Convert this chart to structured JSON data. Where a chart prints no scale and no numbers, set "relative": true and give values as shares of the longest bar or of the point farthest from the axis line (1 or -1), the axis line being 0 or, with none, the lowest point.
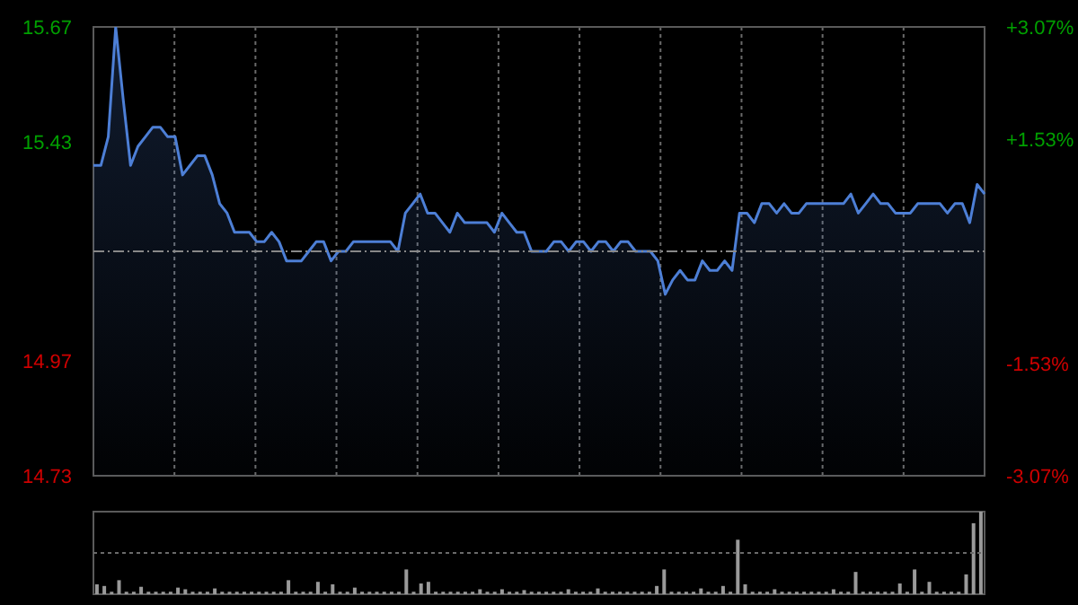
{
  "chart_data": [
    {
      "type": "area",
      "categories": [
        null,
        null,
        null,
        null,
        null,
        null,
        null,
        null,
        null,
        null,
        null,
        null,
        null,
        null,
        null,
        null,
        null,
        null,
        null,
        null,
        null,
        null,
        null,
        null,
        null,
        null,
        null,
        null,
        null,
        null,
        null,
        null,
        null,
        null,
        null,
        null,
        null,
        null,
        null,
        null,
        null,
        null,
        null,
        null,
        null,
        null,
        null,
        null,
        null,
        null,
        null,
        null,
        null,
        null,
        null,
        null,
        null,
        null,
        null,
        null,
        null,
        null,
        null,
        null,
        null,
        null,
        null,
        null,
        null,
        null,
        null,
        null,
        null,
        null,
        null,
        null,
        null,
        null,
        null,
        null,
        null,
        null,
        null,
        null,
        null,
        null,
        null,
        null,
        null,
        null,
        null,
        null,
        null,
        null,
        null,
        null,
        null,
        null,
        null,
        null,
        null,
        null,
        null,
        null,
        null,
        null,
        null,
        null,
        null,
        null,
        null,
        null,
        null,
        null,
        null,
        null,
        null,
        null,
        null,
        null,
        null
      ],
      "series": [
        {
          "color": "#4d7fd6",
          "values": [
            15.38,
            15.38,
            15.44,
            15.67,
            15.52,
            15.38,
            15.42,
            15.44,
            15.46,
            15.46,
            15.44,
            15.44,
            15.36,
            15.38,
            15.4,
            15.4,
            15.36,
            15.3,
            15.28,
            15.24,
            15.24,
            15.24,
            15.22,
            15.22,
            15.24,
            15.22,
            15.18,
            15.18,
            15.18,
            15.2,
            15.22,
            15.22,
            15.18,
            15.2,
            15.2,
            15.22,
            15.22,
            15.22,
            15.22,
            15.22,
            15.22,
            15.2,
            15.28,
            15.3,
            15.32,
            15.28,
            15.28,
            15.26,
            15.24,
            15.28,
            15.26,
            15.26,
            15.26,
            15.26,
            15.24,
            15.28,
            15.26,
            15.24,
            15.24,
            15.2,
            15.2,
            15.2,
            15.22,
            15.22,
            15.2,
            15.22,
            15.22,
            15.2,
            15.22,
            15.22,
            15.2,
            15.22,
            15.22,
            15.2,
            15.2,
            15.2,
            15.18,
            15.11,
            15.14,
            15.16,
            15.14,
            15.14,
            15.18,
            15.16,
            15.16,
            15.18,
            15.16,
            15.28,
            15.28,
            15.26,
            15.3,
            15.3,
            15.28,
            15.3,
            15.28,
            15.28,
            15.3,
            15.3,
            15.3,
            15.3,
            15.3,
            15.3,
            15.32,
            15.28,
            15.3,
            15.32,
            15.3,
            15.3,
            15.28,
            15.28,
            15.28,
            15.3,
            15.3,
            15.3,
            15.3,
            15.28,
            15.3,
            15.3,
            15.26,
            15.34,
            15.32
          ]
        }
      ],
      "ylim": [
        14.73,
        15.67
      ],
      "yticks": [
        14.73,
        14.97,
        15.43,
        15.67
      ],
      "y2lim": [
        -3.07,
        3.07
      ],
      "y2ticks": [
        {
          "value": -3.07,
          "label": "-3.07%"
        },
        {
          "value": -1.53,
          "label": "-1.53%"
        },
        {
          "value": 1.53,
          "label": "+1.53%"
        },
        {
          "value": 3.07,
          "label": "+3.07%"
        }
      ],
      "ref_lines": [
        {
          "axis": "y",
          "value": 15.2,
          "color": "#888888",
          "line_style": "dashed"
        }
      ],
      "grid": true,
      "legend": false,
      "marker": "none",
      "line_style": "solid"
    },
    {
      "type": "bar",
      "relative": true,
      "categories": [
        null,
        null,
        null,
        null,
        null,
        null,
        null,
        null,
        null,
        null,
        null,
        null,
        null,
        null,
        null,
        null,
        null,
        null,
        null,
        null,
        null,
        null,
        null,
        null,
        null,
        null,
        null,
        null,
        null,
        null,
        null,
        null,
        null,
        null,
        null,
        null,
        null,
        null,
        null,
        null,
        null,
        null,
        null,
        null,
        null,
        null,
        null,
        null,
        null,
        null,
        null,
        null,
        null,
        null,
        null,
        null,
        null,
        null,
        null,
        null,
        null,
        null,
        null,
        null,
        null,
        null,
        null,
        null,
        null,
        null,
        null,
        null,
        null,
        null,
        null,
        null,
        null,
        null,
        null,
        null,
        null,
        null,
        null,
        null,
        null,
        null,
        null,
        null,
        null,
        null,
        null,
        null,
        null,
        null,
        null,
        null,
        null,
        null,
        null,
        null,
        null,
        null,
        null,
        null,
        null,
        null,
        null,
        null,
        null,
        null,
        null,
        null,
        null,
        null,
        null,
        null,
        null,
        null,
        null,
        null,
        null
      ],
      "series": [
        {
          "color": "#9a9a9a",
          "values": [
            0.12,
            0.1,
            0.03,
            0.17,
            0.03,
            0.03,
            0.09,
            0.03,
            0.03,
            0.03,
            0.03,
            0.08,
            0.06,
            0.03,
            0.03,
            0.03,
            0.07,
            0.03,
            0.03,
            0.03,
            0.03,
            0.03,
            0.03,
            0.03,
            0.03,
            0.03,
            0.17,
            0.03,
            0.03,
            0.03,
            0.15,
            0.03,
            0.12,
            0.03,
            0.03,
            0.08,
            0.03,
            0.03,
            0.03,
            0.03,
            0.03,
            0.03,
            0.3,
            0.03,
            0.13,
            0.15,
            0.03,
            0.03,
            0.03,
            0.03,
            0.03,
            0.03,
            0.06,
            0.03,
            0.03,
            0.06,
            0.03,
            0.03,
            0.05,
            0.03,
            0.03,
            0.03,
            0.03,
            0.03,
            0.06,
            0.03,
            0.03,
            0.03,
            0.07,
            0.03,
            0.03,
            0.03,
            0.03,
            0.03,
            0.03,
            0.03,
            0.1,
            0.3,
            0.03,
            0.03,
            0.03,
            0.03,
            0.07,
            0.03,
            0.03,
            0.1,
            0.03,
            0.66,
            0.12,
            0.03,
            0.03,
            0.03,
            0.06,
            0.03,
            0.03,
            0.03,
            0.03,
            0.03,
            0.03,
            0.03,
            0.06,
            0.03,
            0.03,
            0.27,
            0.03,
            0.03,
            0.03,
            0.03,
            0.03,
            0.13,
            0.03,
            0.3,
            0.03,
            0.15,
            0.03,
            0.03,
            0.03,
            0.03,
            0.24,
            0.86,
            1
          ]
        }
      ],
      "ref_lines": [
        {
          "axis": "y",
          "value": 0.5,
          "color": "#6a6a6a",
          "line_style": "dotted"
        }
      ],
      "legend": false
    }
  ]
}
